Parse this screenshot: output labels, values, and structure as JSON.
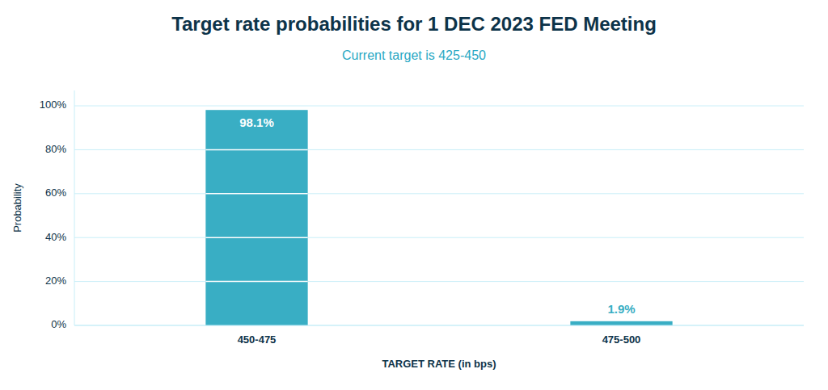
{
  "chart_data": {
    "type": "bar",
    "title": "Target rate probabilities for 1 DEC 2023 FED Meeting",
    "subtitle": "Current target is 425-450",
    "categories": [
      "450-475",
      "475-500"
    ],
    "values": [
      98.1,
      1.9
    ],
    "value_labels": [
      "98.1%",
      "1.9%"
    ],
    "data_labels": true,
    "color": "#39aec4",
    "xlabel": "TARGET RATE (in bps)",
    "ylabel": "Probability",
    "ylim": [
      0,
      107
    ],
    "yticks": [
      {
        "value": 0,
        "label": "0%"
      },
      {
        "value": 20,
        "label": "20%"
      },
      {
        "value": 40,
        "label": "40%"
      },
      {
        "value": 60,
        "label": "60%"
      },
      {
        "value": 80,
        "label": "80%"
      },
      {
        "value": 100,
        "label": "100%"
      }
    ],
    "grid": true
  }
}
